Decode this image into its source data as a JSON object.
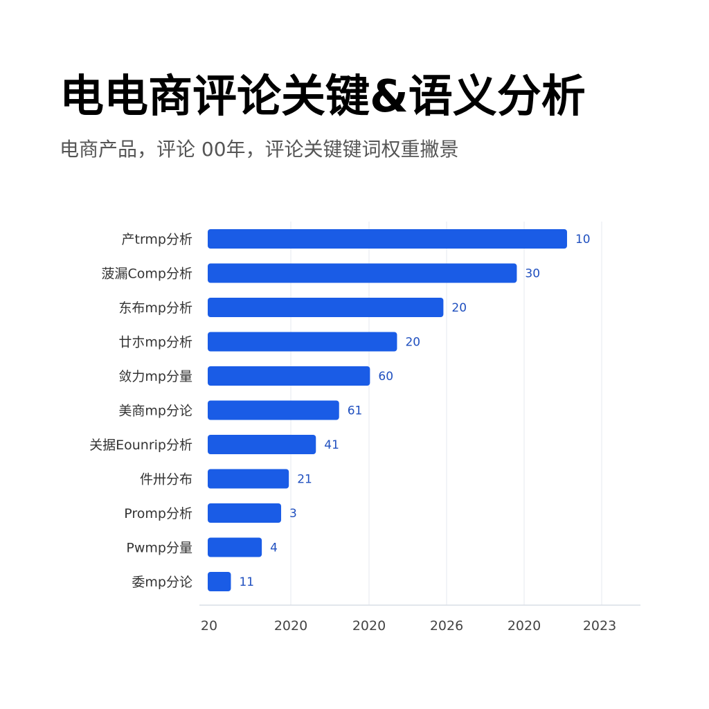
{
  "title": "电电商评论关键&语义分析",
  "subtitle": "电商产品，评论 00年，评论关键键词权重撇景",
  "colors": {
    "bar": "#1a5ce6",
    "grid": "#e6e9ef",
    "value_text": "#1f4fbf"
  },
  "chart_data": {
    "type": "bar",
    "orientation": "horizontal",
    "title": "电电商评论关键&语义分析",
    "subtitle": "电商产品，评论 00年，评论关键键词权重撇景",
    "categories": [
      "产trmp分析",
      "菠漏Comp分析",
      "东布mp分析",
      "廿朩mp分析",
      "敛力mp分量",
      "美商mp分论",
      "关据Eounrip分析",
      "件卅分布",
      "Promp分析",
      "Pwmp分量",
      "委mp分论"
    ],
    "value_labels": [
      "10",
      "30",
      "20",
      "20",
      "60",
      "61",
      "41",
      "21",
      "3",
      "4",
      "11"
    ],
    "values": [
      4.65,
      4.0,
      3.05,
      2.45,
      2.1,
      1.7,
      1.4,
      1.05,
      0.95,
      0.7,
      0.3
    ],
    "x_tick_labels": [
      "20",
      "2020",
      "2020",
      "2026",
      "2020",
      "2023"
    ],
    "xlim": [
      0,
      5.6
    ],
    "xlabel": "",
    "ylabel": "",
    "grid": true,
    "legend": "none"
  }
}
